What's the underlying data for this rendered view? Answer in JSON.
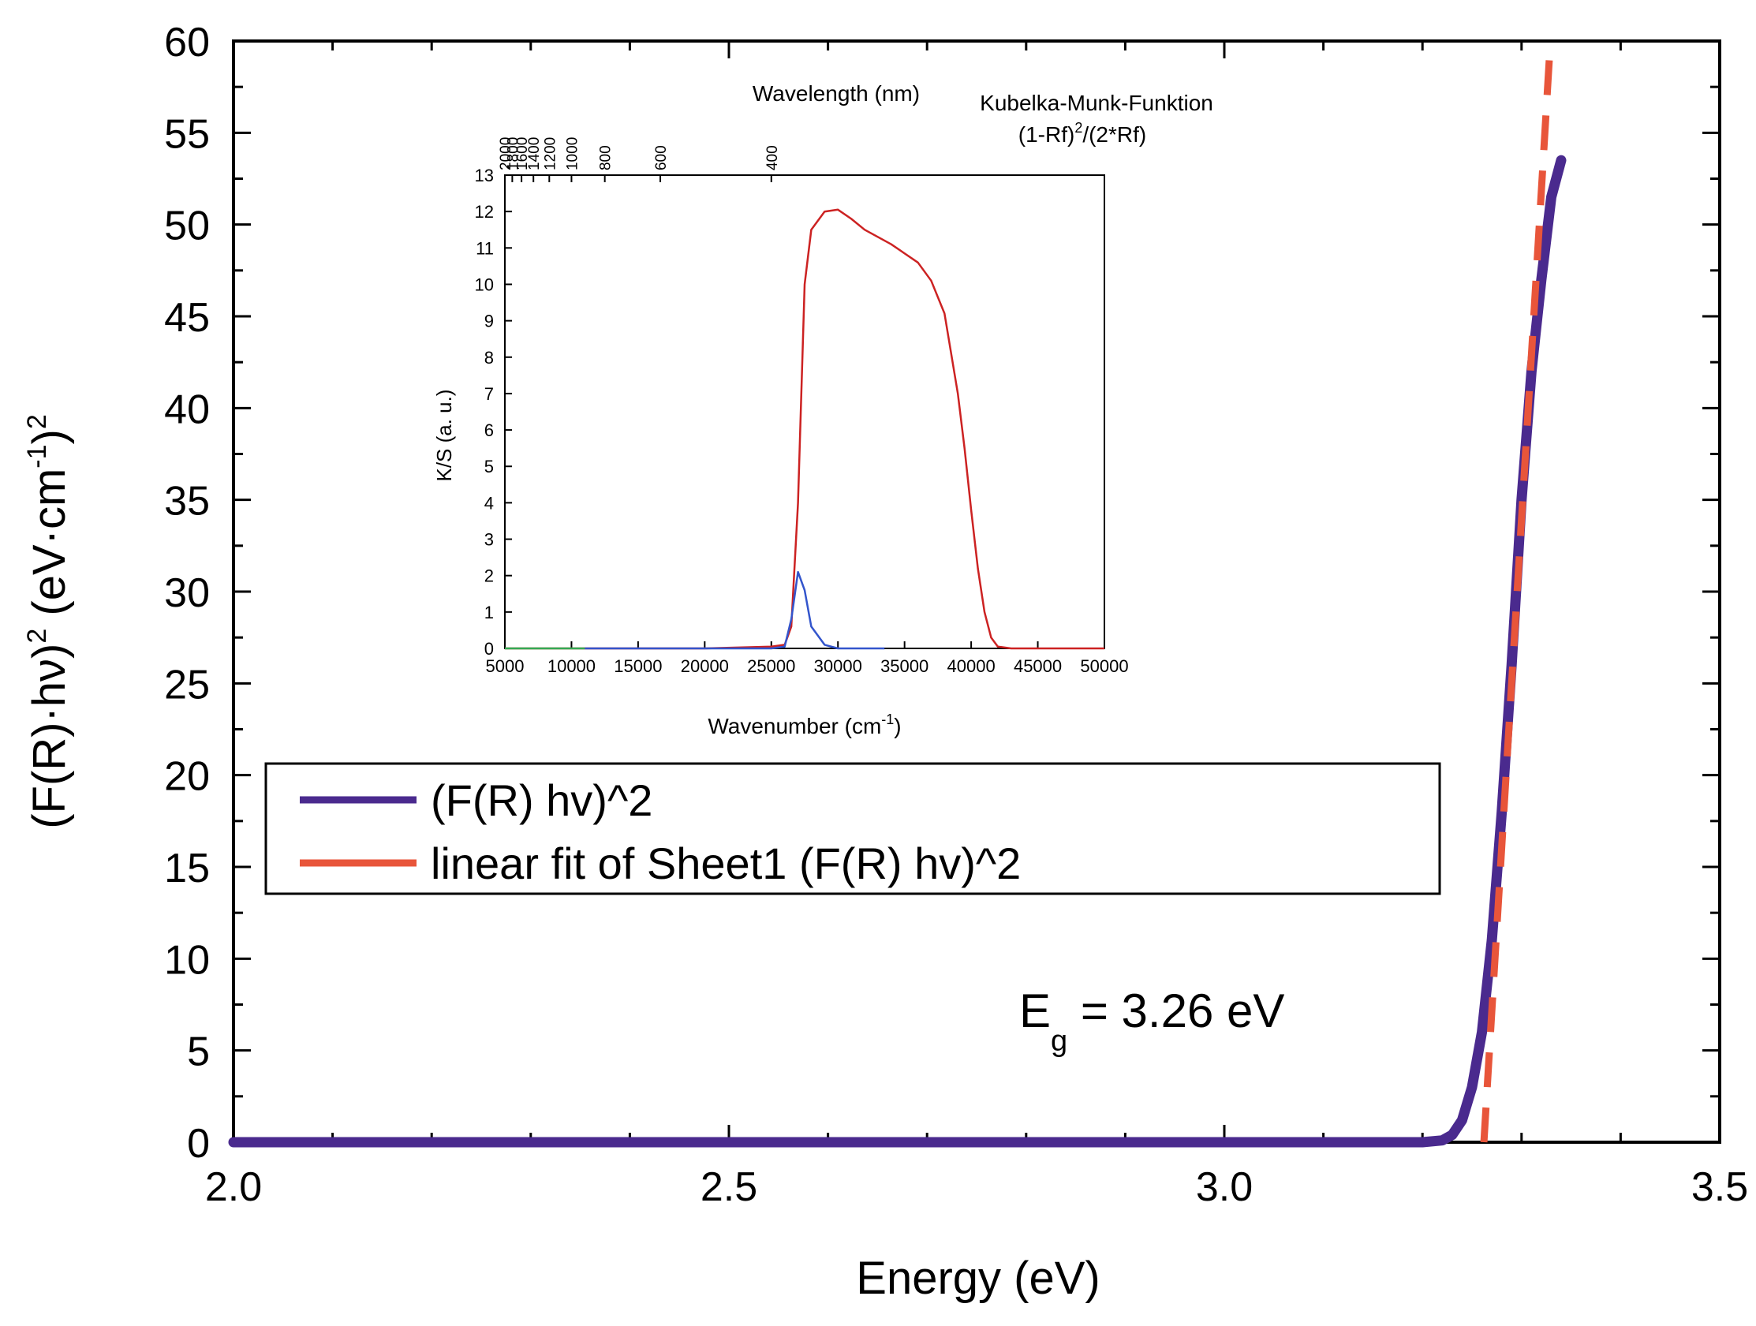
{
  "main_chart": {
    "xlabel": "Energy (eV)",
    "ylabel_base": "(F(R)·hν)",
    "ylabel_sup1": "2",
    "ylabel_mid": " (eV·cm",
    "ylabel_sup2": "-1",
    "ylabel_close": ")",
    "ylabel_sup3": "2",
    "annotation_main": "E",
    "annotation_sub": "g",
    "annotation_rest": " = 3.26 eV",
    "legend": [
      "(F(R) hv)^2",
      "linear fit of Sheet1 (F(R) hv)^2"
    ]
  },
  "inset_chart": {
    "top_title": "Wavelength (nm)",
    "right_title": "Kubelka-Munk-Funktion",
    "right_formula_a": "(1-Rf)",
    "right_formula_sup": "2",
    "right_formula_b": "/(2*Rf)",
    "ylabel": "K/S (a. u.)",
    "xlabel_base": "Wavenumber (cm",
    "xlabel_sup": "-1",
    "xlabel_close": ")"
  },
  "colors": {
    "purple": "#4a2a8e",
    "orange": "#e8553a",
    "inset_red": "#cc2222",
    "inset_blue": "#3355cc",
    "inset_green": "#33aa55",
    "axis": "#000000"
  },
  "chart_data": [
    {
      "type": "line",
      "title": "",
      "xlabel": "Energy (eV)",
      "ylabel": "(F(R)·hν)^2 (eV·cm^-1)^2",
      "xlim": [
        2.0,
        3.5
      ],
      "ylim": [
        0,
        60
      ],
      "x_major_ticks": [
        "2.0",
        "2.5",
        "3.0",
        "3.5"
      ],
      "y_major_ticks": [
        "0",
        "5",
        "10",
        "15",
        "20",
        "25",
        "30",
        "35",
        "40",
        "45",
        "50",
        "55",
        "60"
      ],
      "legend_position": "left",
      "series": [
        {
          "name": "(F(R) hv)^2",
          "x": [
            2.0,
            2.5,
            3.0,
            3.2,
            3.22,
            3.23,
            3.24,
            3.25,
            3.26,
            3.27,
            3.28,
            3.29,
            3.3,
            3.31,
            3.32,
            3.33,
            3.34
          ],
          "y": [
            0,
            0,
            0,
            0,
            0.1,
            0.4,
            1.2,
            3.0,
            6.0,
            11.0,
            18.0,
            26.0,
            35.0,
            42.0,
            47.0,
            51.5,
            53.5
          ]
        },
        {
          "name": "linear fit of Sheet1 (F(R) hv)^2",
          "x": [
            3.262,
            3.328
          ],
          "y": [
            0,
            59
          ]
        }
      ],
      "annotations": [
        "Eg = 3.26 eV"
      ]
    },
    {
      "type": "line",
      "title": "Kubelka-Munk-Funktion (1-Rf)^2/(2*Rf)",
      "xlabel": "Wavenumber (cm-1)",
      "ylabel": "K/S (a. u.)",
      "top_xlabel": "Wavelength (nm)",
      "xlim": [
        5000,
        50000
      ],
      "ylim": [
        0,
        13
      ],
      "x_ticks": [
        "5000",
        "10000",
        "15000",
        "20000",
        "25000",
        "30000",
        "35000",
        "40000",
        "45000",
        "50000"
      ],
      "y_ticks": [
        "0",
        "1",
        "2",
        "3",
        "4",
        "5",
        "6",
        "7",
        "8",
        "9",
        "10",
        "11",
        "12",
        "13"
      ],
      "top_ticks": [
        "2000",
        "1800",
        "1600",
        "1400",
        "1200",
        "1000",
        "800",
        "600",
        "400"
      ],
      "series": [
        {
          "name": "red",
          "x": [
            5000,
            20000,
            25000,
            26000,
            26500,
            27000,
            27500,
            28000,
            29000,
            30000,
            31000,
            32000,
            34000,
            36000,
            37000,
            38000,
            39000,
            39500,
            40000,
            40500,
            41000,
            41500,
            42000,
            43000,
            50000
          ],
          "y": [
            0,
            0,
            0.05,
            0.1,
            0.6,
            4.0,
            10.0,
            11.5,
            12.0,
            12.05,
            11.8,
            11.5,
            11.1,
            10.6,
            10.1,
            9.2,
            7.0,
            5.5,
            3.8,
            2.2,
            1.0,
            0.3,
            0.05,
            0,
            0
          ]
        },
        {
          "name": "blue",
          "x": [
            11000,
            25000,
            26000,
            26500,
            27000,
            27500,
            28000,
            29000,
            30000,
            33500
          ],
          "y": [
            0,
            0,
            0.05,
            0.8,
            2.1,
            1.6,
            0.6,
            0.1,
            0,
            0
          ]
        },
        {
          "name": "green",
          "x": [
            5000,
            11000
          ],
          "y": [
            0,
            0
          ]
        }
      ]
    }
  ]
}
